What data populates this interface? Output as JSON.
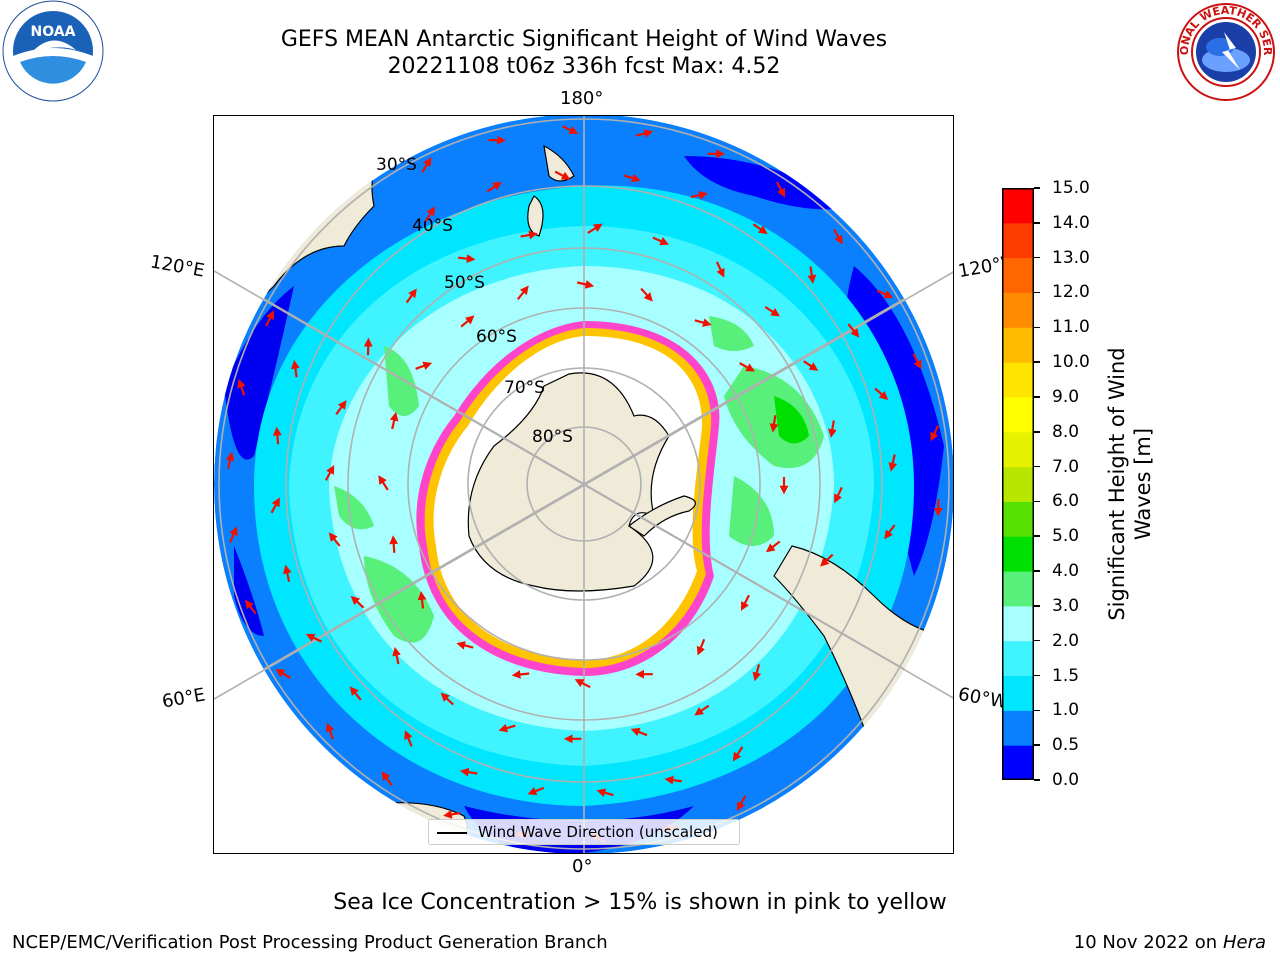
{
  "header": {
    "title_line1": "GEFS MEAN Antarctic Significant Height of Wind Waves",
    "title_line2": "20221108 t06z 336h fcst   Max: 4.52"
  },
  "logos": {
    "left": "NOAA",
    "right": "NATIONAL WEATHER SERVICE"
  },
  "map": {
    "projection": "south-polar-stereographic",
    "longitude_labels": {
      "top": "180°",
      "bottom": "0°",
      "upper_left": "120°E",
      "lower_left": "60°E",
      "upper_right": "120°W",
      "lower_right": "60°W"
    },
    "latitude_labels": [
      "30°S",
      "40°S",
      "50°S",
      "60°S",
      "70°S",
      "80°S"
    ],
    "colors": {
      "land": "#efebd8",
      "grid": "#b0b0b0",
      "ice_edge_pink": "#ff44cc",
      "ice_edge_yellow": "#ffc400",
      "ice_edge_orange": "#ff9900",
      "arrow": "#ee1100"
    },
    "legend": "Wind Wave Direction (unscaled)"
  },
  "colorbar": {
    "label": "Significant Height of Wind Waves [m]",
    "ticks": [
      "0.0",
      "0.5",
      "1.0",
      "1.5",
      "2.0",
      "3.0",
      "4.0",
      "5.0",
      "6.0",
      "7.0",
      "8.0",
      "9.0",
      "10.0",
      "11.0",
      "12.0",
      "13.0",
      "14.0",
      "15.0"
    ],
    "colors": [
      "#0000ff",
      "#0a80ff",
      "#00e6ff",
      "#40f4ff",
      "#a8ffff",
      "#58f07a",
      "#00e000",
      "#58e000",
      "#b8e600",
      "#e6f200",
      "#ffff00",
      "#ffe400",
      "#ffbb00",
      "#ff8c00",
      "#ff6600",
      "#ff3c00",
      "#ff0000"
    ]
  },
  "notes": {
    "ice": "Sea Ice Concentration > 15% is shown in pink to yellow",
    "footer_left": "NCEP/EMC/Verification Post Processing Product Generation Branch",
    "footer_date": "10 Nov 2022 on",
    "footer_machine": "Hera"
  }
}
